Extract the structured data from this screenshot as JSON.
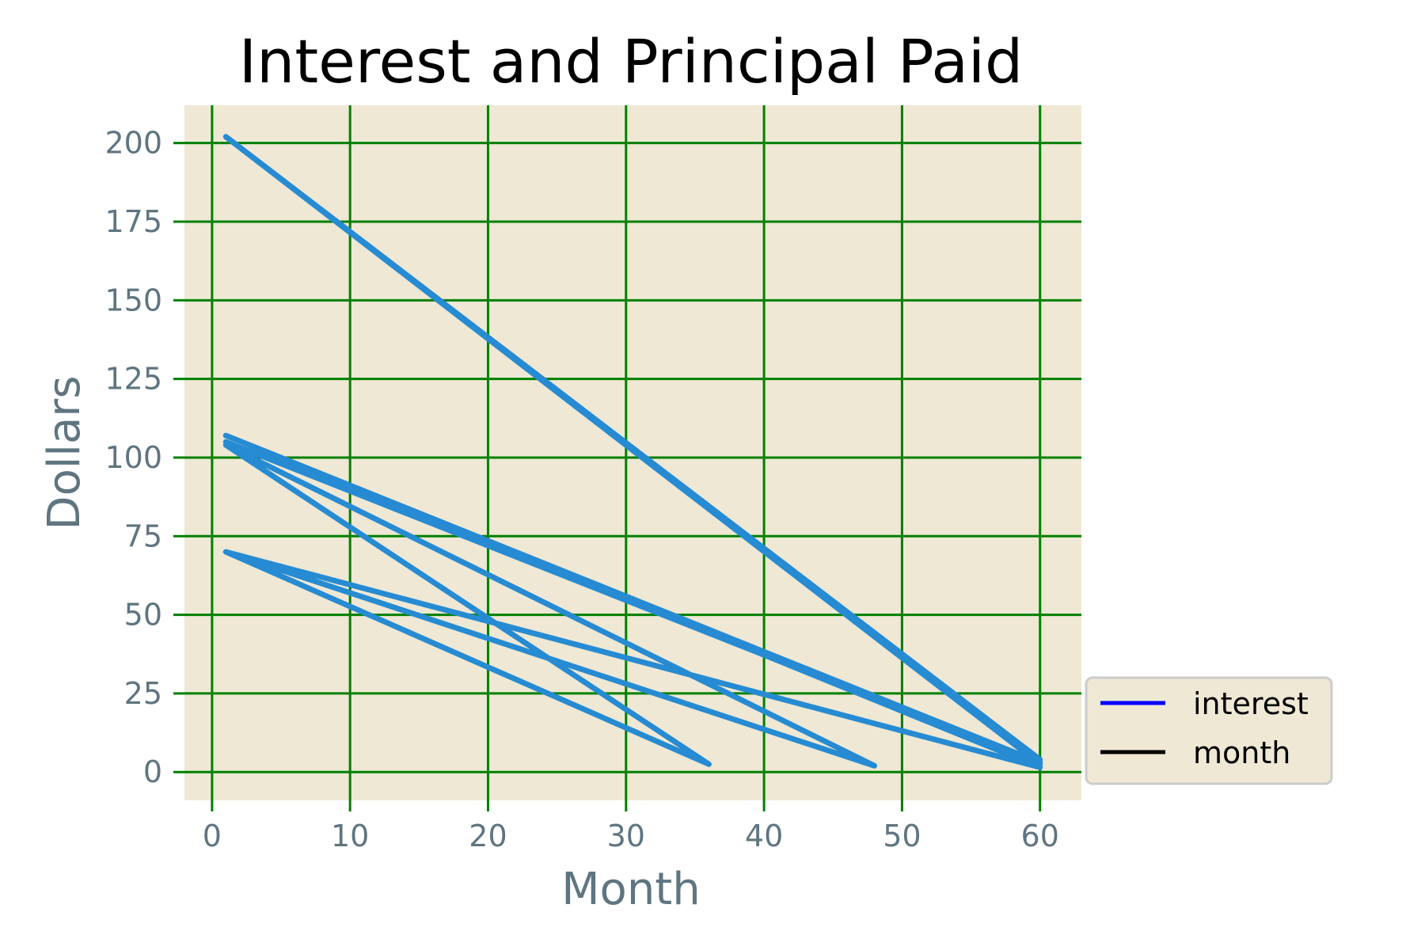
{
  "chart_data": {
    "type": "line",
    "title": "Interest and Principal Paid",
    "xlabel": "Month",
    "ylabel": "Dollars",
    "xlim": [
      -2,
      63
    ],
    "ylim": [
      -9,
      212
    ],
    "xticks": [
      0,
      10,
      20,
      30,
      40,
      50,
      60
    ],
    "yticks": [
      0,
      25,
      50,
      75,
      100,
      125,
      150,
      175,
      200
    ],
    "grid": true,
    "grid_color": "#008000",
    "plot_background": "#eee8d5",
    "line_color": "#268bd2",
    "label_color": "#5f7580",
    "series": [
      {
        "x": [
          1,
          36,
          1,
          48,
          1,
          60,
          1,
          60,
          1,
          60,
          1,
          60
        ],
        "y": [
          70,
          2.5,
          104,
          2,
          70,
          1.5,
          107,
          3,
          105,
          2.5,
          202,
          4
        ]
      }
    ],
    "legend": {
      "position": "lower-right outside",
      "entries": [
        {
          "label": "interest",
          "color": "#0000ff"
        },
        {
          "label": "month",
          "color": "#000000"
        }
      ]
    }
  }
}
